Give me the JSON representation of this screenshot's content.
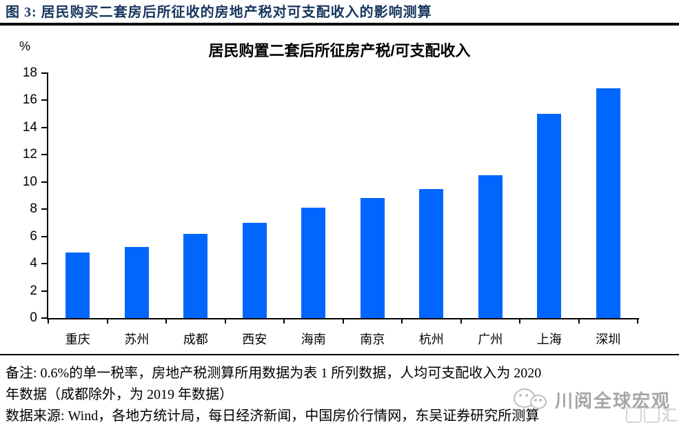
{
  "figure_header": {
    "label": "图 3:",
    "title": "居民购买二套房后所征收的房地产税对可支配收入的影响测算"
  },
  "chart_data": {
    "type": "bar",
    "title": "居民购置二套后所征房产税/可支配收入",
    "ylabel": "%",
    "xlabel": "",
    "categories": [
      "重庆",
      "苏州",
      "成都",
      "西安",
      "海南",
      "南京",
      "杭州",
      "广州",
      "上海",
      "深圳"
    ],
    "values": [
      4.8,
      5.2,
      6.2,
      7.0,
      8.1,
      8.8,
      9.5,
      10.5,
      15.0,
      16.9
    ],
    "ylim": [
      0,
      18
    ],
    "ytick_step": 2,
    "bar_color": "#0066FE",
    "grid": false,
    "legend_position": "none"
  },
  "notes": {
    "line1": "备注: 0.6%的单一税率，房地产税测算所用数据为表 1 所列数据，人均可支配收入为 2020",
    "line2": "年数据（成都除外，为 2019 年数据）",
    "source": "数据来源: Wind，各地方统计局，每日经济新闻，中国房价行情网，东吴证券研究所测算"
  },
  "watermark": {
    "brand": "川阅全球宏观",
    "corner_char": "汇"
  },
  "colors": {
    "header_text": "#17365D",
    "bar": "#0066FE",
    "axis": "#000000",
    "watermark_grey": "#A6A6A6"
  }
}
